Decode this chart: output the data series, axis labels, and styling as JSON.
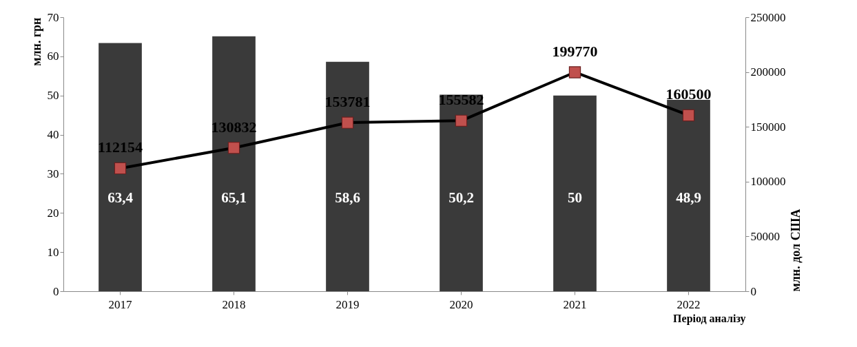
{
  "chart_data": {
    "type": "bar",
    "categories": [
      "2017",
      "2018",
      "2019",
      "2020",
      "2021",
      "2022"
    ],
    "xlabel": "Період аналізу",
    "ylabel": "млн. грн",
    "y2label": "млн. дол США",
    "ylim": [
      0,
      70
    ],
    "yticks": [
      0,
      10,
      20,
      30,
      40,
      50,
      60,
      70
    ],
    "y2lim": [
      0,
      250000
    ],
    "y2ticks": [
      0,
      50000,
      100000,
      150000,
      200000,
      250000
    ],
    "marker": "square",
    "series": [
      {
        "color": "#3a3a3a",
        "values": [
          63.4,
          65.1,
          58.6,
          50.2,
          50,
          48.9
        ],
        "value_labels": [
          "63,4",
          "65,1",
          "58,6",
          "50,2",
          "50",
          "48,9"
        ]
      },
      {
        "type": "line",
        "axis": "y2",
        "color": "#000000",
        "values": [
          112154,
          130832,
          153781,
          155582,
          199770,
          160500
        ],
        "value_labels": [
          "112154",
          "130832",
          "153781",
          "155582",
          "199770",
          "160500"
        ]
      }
    ]
  }
}
